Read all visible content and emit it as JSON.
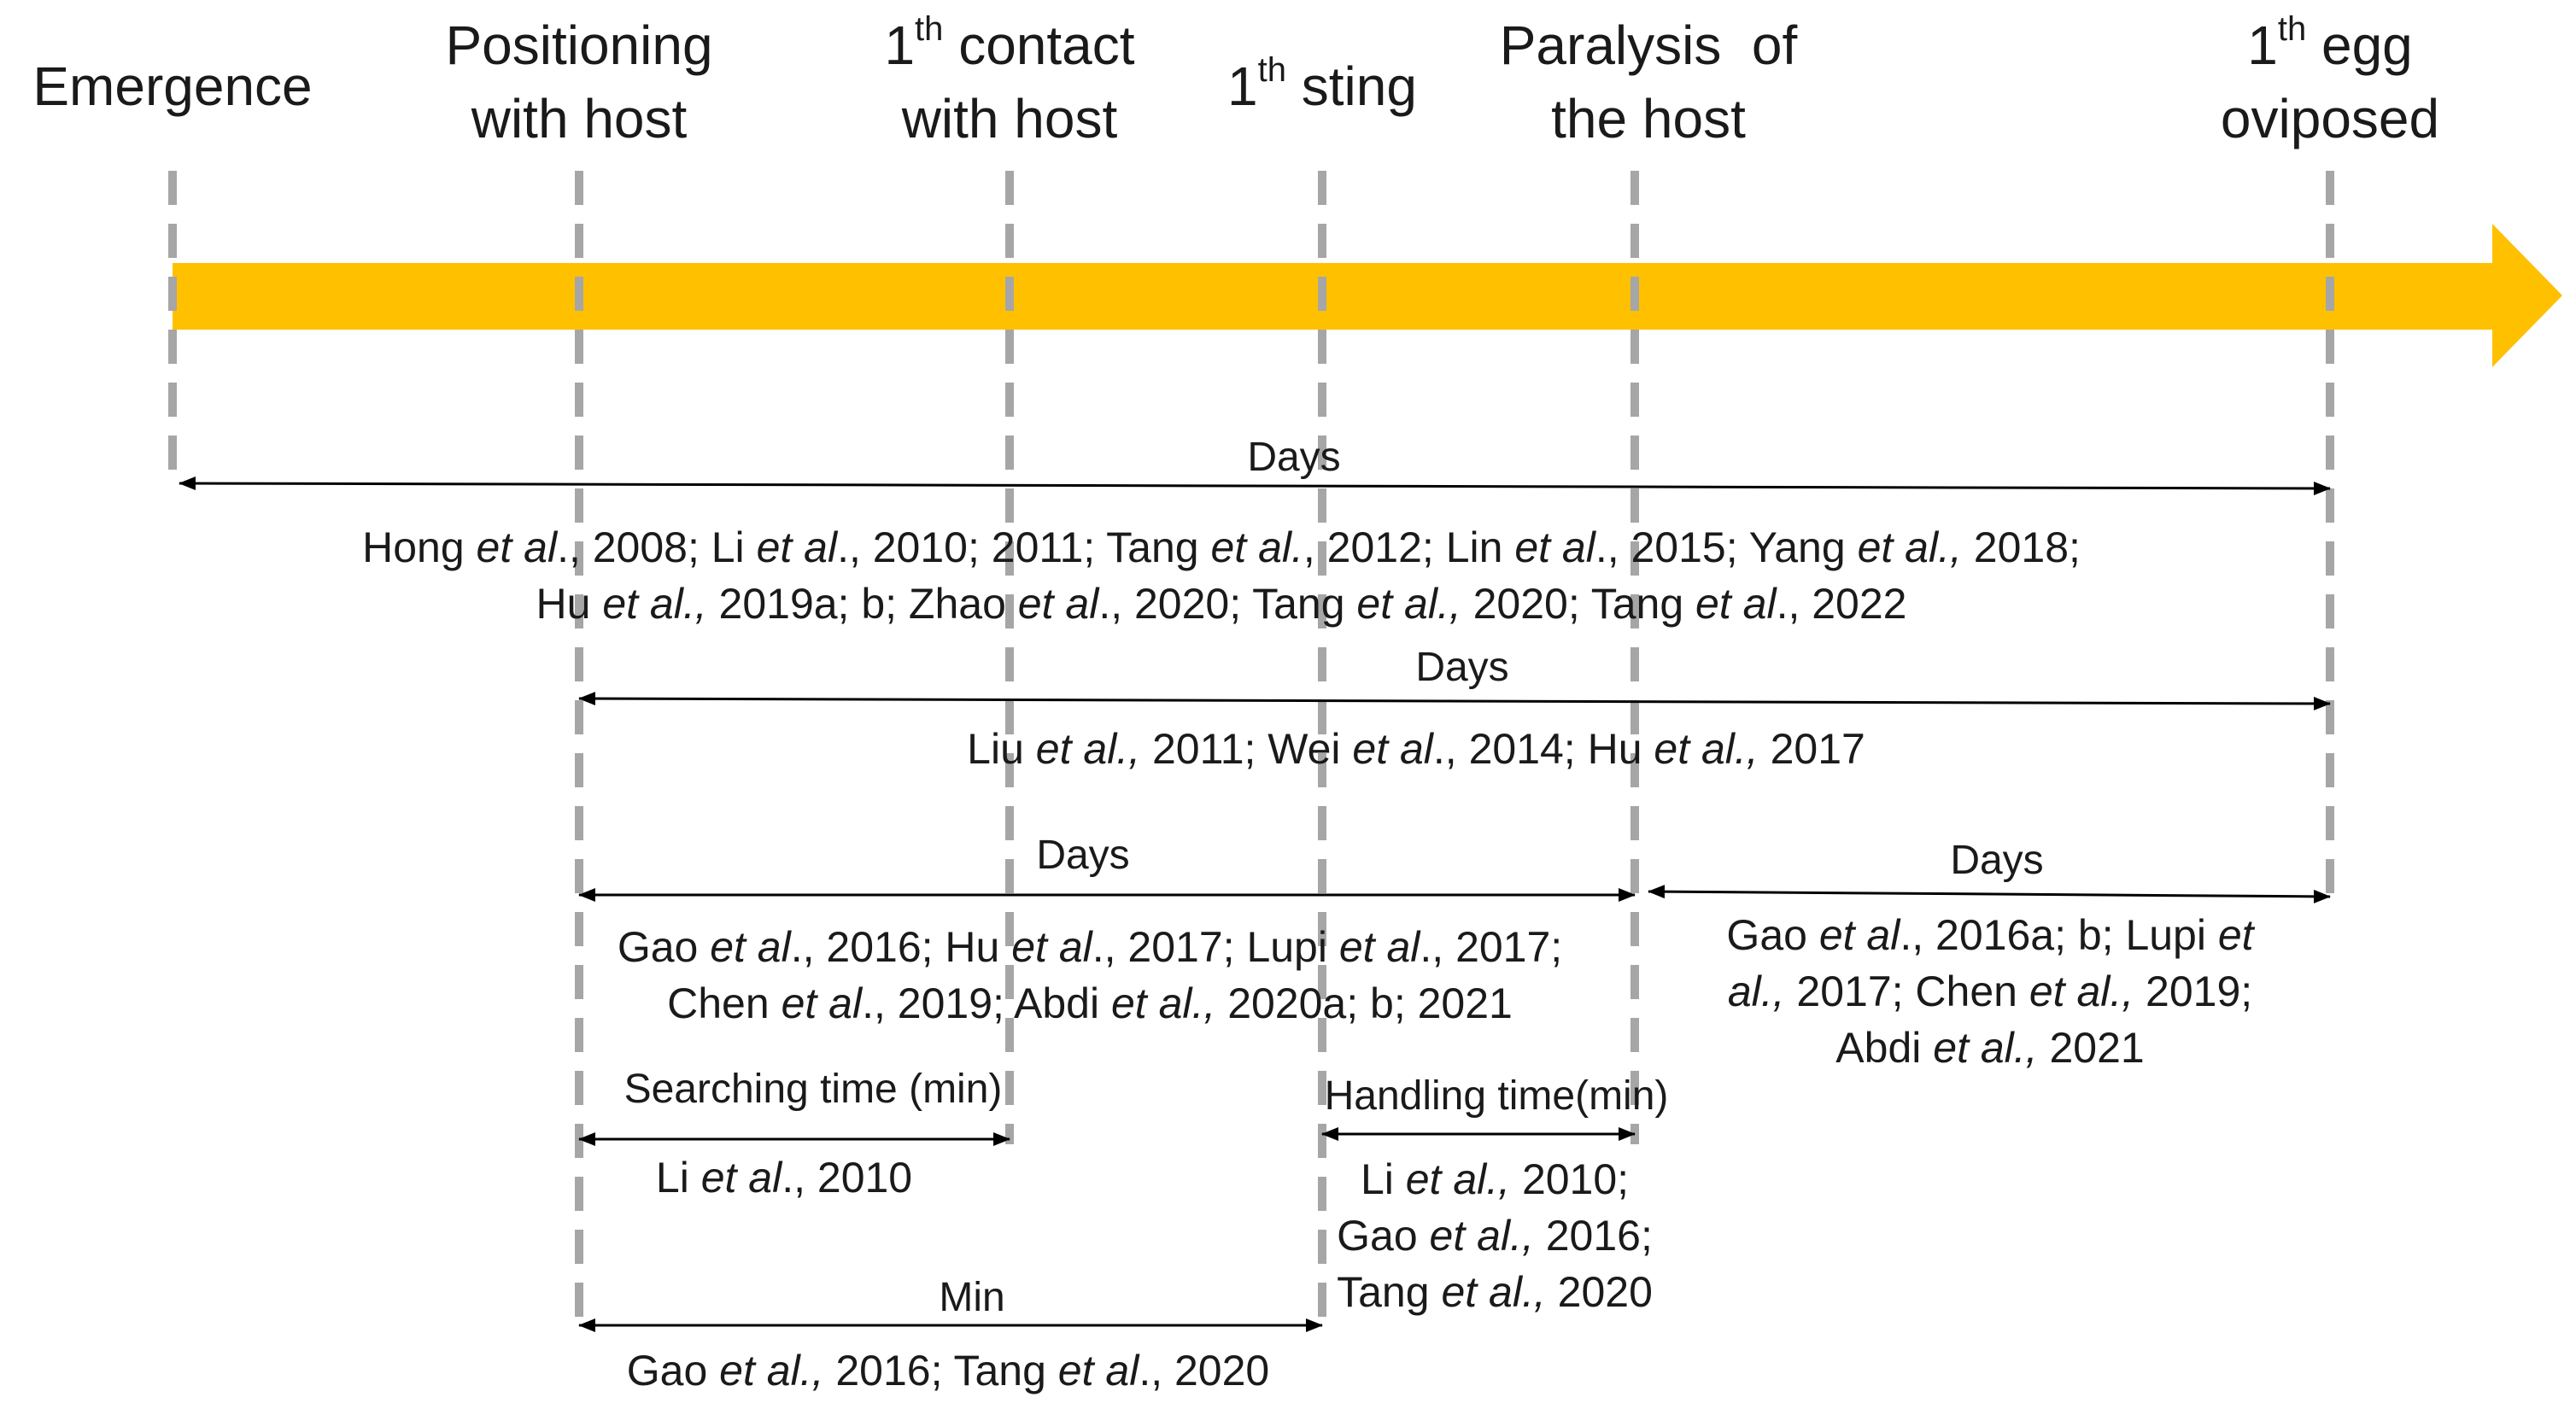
{
  "stages": [
    {
      "id": "emergence",
      "lines": [
        {
          "text": "Emergence"
        }
      ]
    },
    {
      "id": "positioning",
      "lines": [
        {
          "text": "Positioning"
        },
        {
          "text": "with host"
        }
      ]
    },
    {
      "id": "first-contact",
      "lines": [
        {
          "sup_prefix": "1",
          "sup": "th",
          "text": " contact"
        },
        {
          "text": "with host"
        }
      ]
    },
    {
      "id": "first-sting",
      "lines": [
        {
          "sup_prefix": "1",
          "sup": "th",
          "text": " sting"
        }
      ]
    },
    {
      "id": "paralysis",
      "lines": [
        {
          "text": "Paralysis  of"
        },
        {
          "text": "the host"
        }
      ]
    },
    {
      "id": "first-egg",
      "lines": [
        {
          "sup_prefix": "1",
          "sup": "th",
          "text": " egg"
        },
        {
          "text": "oviposed"
        }
      ]
    }
  ],
  "colors": {
    "arrow": "#FFC000",
    "dashed_line": "#a6a6a6",
    "span_line": "#000000"
  },
  "spans": [
    {
      "id": "emergence-to-egg",
      "label": "Days",
      "refs": [
        [
          [
            "Hong ",
            ""
          ],
          [
            "et al",
            ""
          ],
          [
            "., 2008; Li ",
            ""
          ],
          [
            "et al",
            ""
          ],
          [
            "., 2010; 2011; Tang ",
            ""
          ],
          [
            "et al.",
            ""
          ],
          [
            ", 2012; Lin ",
            ""
          ],
          [
            "et al",
            ""
          ],
          [
            "., 2015; Yang ",
            ""
          ],
          [
            "et al.,",
            ""
          ],
          [
            " 2018;",
            ""
          ]
        ],
        [
          [
            "Hu ",
            ""
          ],
          [
            "et al.,",
            ""
          ],
          [
            " 2019a; b; Zhao ",
            ""
          ],
          [
            "et al",
            ""
          ],
          [
            "., 2020; Tang ",
            ""
          ],
          [
            "et al.,",
            ""
          ],
          [
            " 2020; Tang ",
            ""
          ],
          [
            "et al",
            ""
          ],
          [
            "., 2022",
            ""
          ]
        ]
      ]
    },
    {
      "id": "positioning-to-egg",
      "label": "Days",
      "refs": [
        [
          [
            "Liu ",
            ""
          ],
          [
            "et al.,",
            ""
          ],
          [
            " 2011; Wei ",
            ""
          ],
          [
            "et al",
            ""
          ],
          [
            "., 2014; Hu ",
            ""
          ],
          [
            "et al.,",
            ""
          ],
          [
            " 2017",
            ""
          ]
        ]
      ]
    },
    {
      "id": "positioning-to-paralysis",
      "label": "Days",
      "refs": [
        [
          [
            "Gao ",
            ""
          ],
          [
            "et al",
            ""
          ],
          [
            "., 2016; Hu ",
            ""
          ],
          [
            "et al",
            ""
          ],
          [
            "., 2017; Lupi ",
            ""
          ],
          [
            "et al",
            ""
          ],
          [
            "., 2017;",
            ""
          ]
        ],
        [
          [
            "Chen ",
            ""
          ],
          [
            "et al",
            ""
          ],
          [
            "., 2019; Abdi ",
            ""
          ],
          [
            "et al.,",
            ""
          ],
          [
            " 2020a; b; 2021",
            ""
          ]
        ]
      ]
    },
    {
      "id": "paralysis-to-egg",
      "label": "Days",
      "refs": [
        [
          [
            "Gao ",
            ""
          ],
          [
            "et al",
            ""
          ],
          [
            "., 2016a; b; Lupi ",
            ""
          ],
          [
            "et",
            ""
          ]
        ],
        [
          [
            "al.,",
            ""
          ],
          [
            " 2017; Chen ",
            ""
          ],
          [
            "et al.,",
            ""
          ],
          [
            " 2019;",
            ""
          ]
        ],
        [
          [
            "Abdi ",
            ""
          ],
          [
            "et al.,",
            ""
          ],
          [
            " 2021",
            ""
          ]
        ]
      ]
    },
    {
      "id": "searching-time",
      "label": "Searching time (min)",
      "refs": [
        [
          [
            "Li ",
            ""
          ],
          [
            "et al",
            ""
          ],
          [
            "., 2010",
            ""
          ]
        ]
      ]
    },
    {
      "id": "handling-time",
      "label": "Handling time(min)",
      "refs": [
        [
          [
            "Li ",
            ""
          ],
          [
            "et al.,",
            ""
          ],
          [
            " 2010;",
            ""
          ]
        ],
        [
          [
            "Gao ",
            ""
          ],
          [
            "et al.,",
            ""
          ],
          [
            " 2016;",
            ""
          ]
        ],
        [
          [
            "Tang ",
            ""
          ],
          [
            "et al.,",
            ""
          ],
          [
            " 2020",
            ""
          ]
        ]
      ]
    },
    {
      "id": "positioning-to-sting",
      "label": "Min",
      "refs": [
        [
          [
            "Gao ",
            ""
          ],
          [
            "et al.,",
            ""
          ],
          [
            " 2016; Tang ",
            ""
          ],
          [
            "et al",
            ""
          ],
          [
            "., 2020",
            ""
          ]
        ]
      ]
    }
  ]
}
